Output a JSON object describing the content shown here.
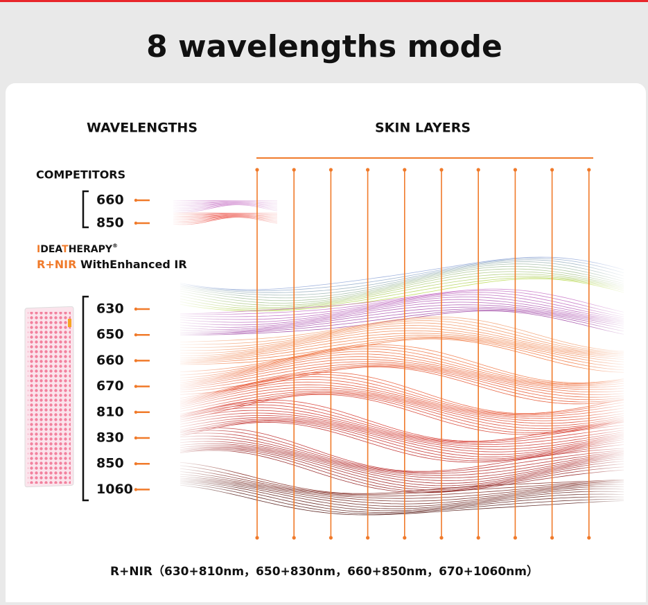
{
  "title": "8 wavelengths mode",
  "headers": [
    "WAVELENGTHS",
    "SKIN LAYERS"
  ],
  "competitors": {
    "label": "COMPETITORS",
    "wavelengths": [
      "660",
      "850"
    ]
  },
  "brand": {
    "segments": [
      {
        "text": "I",
        "accent": true
      },
      {
        "text": "DEA",
        "accent": false
      },
      {
        "text": "T",
        "accent": true
      },
      {
        "text": "HERAPY",
        "accent": false
      },
      {
        "text": "®",
        "accent": false
      }
    ],
    "tagline_accent": "R+NIR",
    "tagline": "WithEnhanced IR"
  },
  "wavelengths": [
    "630",
    "650",
    "660",
    "670",
    "810",
    "830",
    "850",
    "1060"
  ],
  "footnote": "R+NIR（630+810nm，650+830nm，660+850nm，670+1060nm）"
}
